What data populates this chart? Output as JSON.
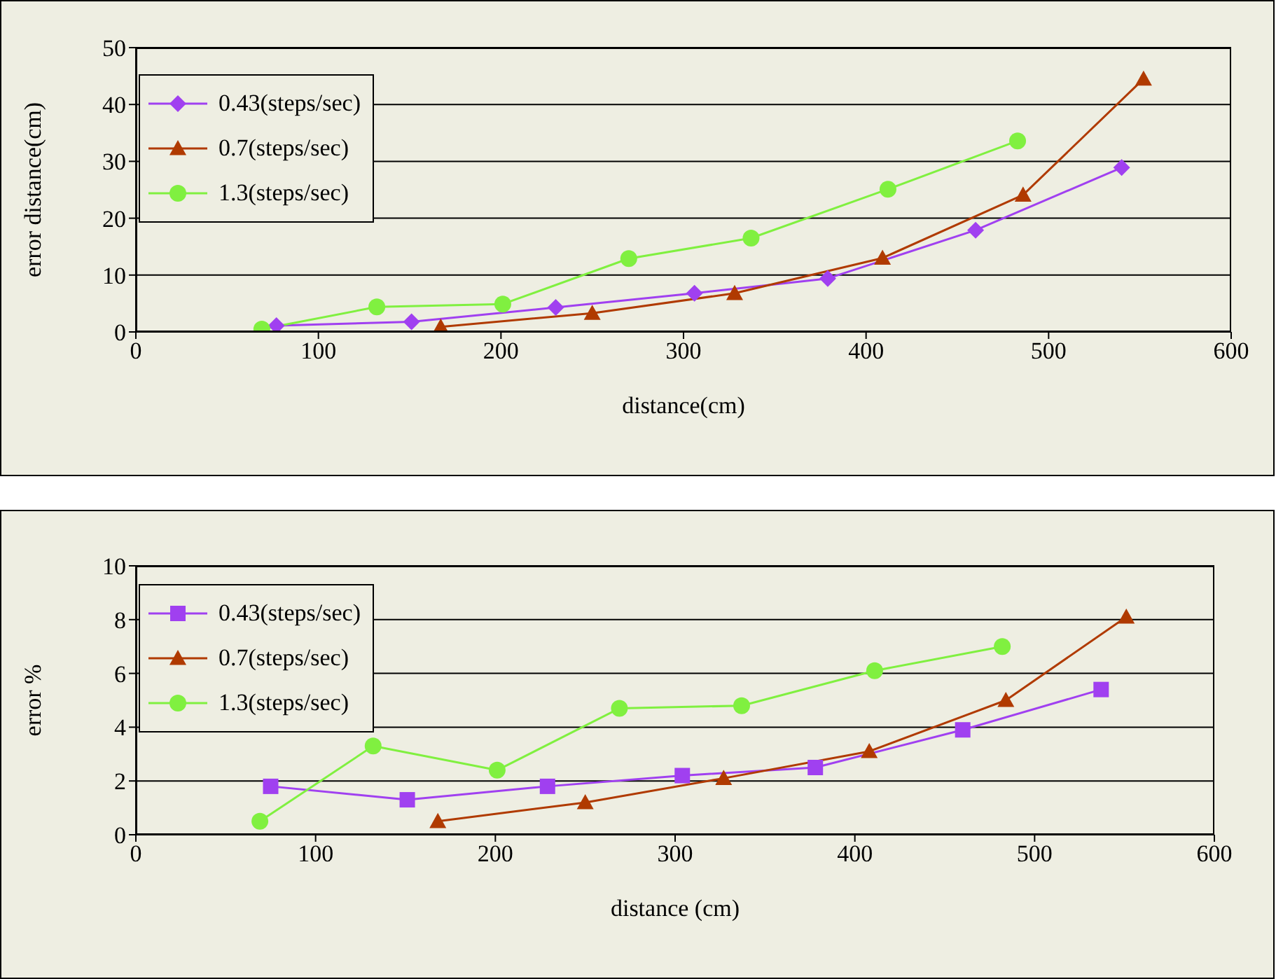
{
  "chart_data": [
    {
      "type": "line",
      "xlabel": "distance(cm)",
      "ylabel": "error distance(cm)",
      "xlim": [
        0,
        600
      ],
      "xticks": [
        0,
        100,
        200,
        300,
        400,
        500,
        600
      ],
      "ylim": [
        0,
        50
      ],
      "yticks": [
        0,
        10,
        20,
        30,
        40,
        50
      ],
      "grid": "y",
      "legend": "top left",
      "series": [
        {
          "name": "0.43(steps/sec)",
          "color": "#a040f0",
          "marker": "diamond",
          "x": [
            77,
            151,
            230,
            306,
            379,
            460,
            540
          ],
          "values": [
            1.1,
            1.8,
            4.3,
            6.8,
            9.4,
            17.9,
            28.9
          ]
        },
        {
          "name": "0.7(steps/sec)",
          "color": "#b03a00",
          "marker": "triangle",
          "x": [
            167,
            250,
            328,
            409,
            486,
            552
          ],
          "values": [
            0.9,
            3.3,
            6.8,
            13,
            24.1,
            44.5
          ]
        },
        {
          "name": "1.3(steps/sec)",
          "color": "#80f040",
          "marker": "circle",
          "x": [
            69,
            132,
            201,
            270,
            337,
            412,
            483
          ],
          "values": [
            0.5,
            4.4,
            4.9,
            12.9,
            16.5,
            25.1,
            33.6
          ]
        }
      ]
    },
    {
      "type": "line",
      "xlabel": "distance (cm)",
      "ylabel": "error %",
      "xlim": [
        0,
        600
      ],
      "xticks": [
        0,
        100,
        200,
        300,
        400,
        500,
        600
      ],
      "ylim": [
        0,
        10
      ],
      "yticks": [
        0,
        2,
        4,
        6,
        8,
        10
      ],
      "grid": "y",
      "legend": "top left",
      "series": [
        {
          "name": "0.43(steps/sec)",
          "color": "#a040f0",
          "marker": "square",
          "x": [
            75,
            151,
            229,
            304,
            378,
            460,
            537
          ],
          "values": [
            1.8,
            1.3,
            1.8,
            2.2,
            2.5,
            3.9,
            5.4
          ]
        },
        {
          "name": "0.7(steps/sec)",
          "color": "#b03a00",
          "marker": "triangle",
          "x": [
            168,
            250,
            327,
            408,
            484,
            551
          ],
          "values": [
            0.5,
            1.2,
            2.1,
            3.1,
            5,
            8.1
          ]
        },
        {
          "name": "1.3(steps/sec)",
          "color": "#80f040",
          "marker": "circle",
          "x": [
            69,
            132,
            201,
            269,
            337,
            411,
            482
          ],
          "values": [
            0.5,
            3.3,
            2.4,
            4.7,
            4.8,
            6.1,
            7
          ]
        }
      ]
    }
  ]
}
